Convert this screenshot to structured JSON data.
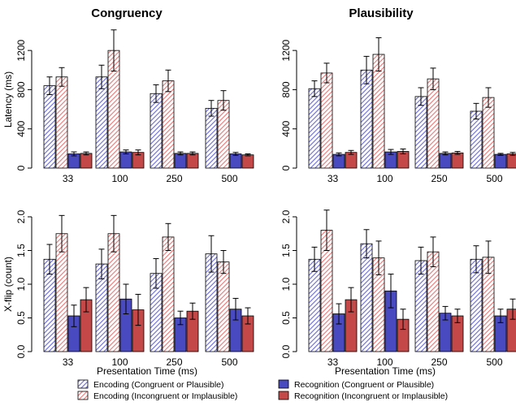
{
  "colors": {
    "encoding_congruent": "#6b6bd6",
    "encoding_incongruent": "#e87878",
    "recognition_congruent": "#4a4ac0",
    "recognition_incongruent": "#c44848",
    "axis": "#000000"
  },
  "legend": [
    {
      "label": "Encoding (Congruent or Plausible)",
      "style": "hatch",
      "color": "#6b6bd6"
    },
    {
      "label": "Encoding (Incongruent or Implausible)",
      "style": "hatch",
      "color": "#e87878"
    },
    {
      "label": "Recognition (Congruent or Plausible)",
      "style": "solid",
      "color": "#4a4ac0"
    },
    {
      "label": "Recognition (Incongruent or Implausible)",
      "style": "solid",
      "color": "#c44848"
    }
  ],
  "chart_data": [
    {
      "type": "bar",
      "title": "Congruency",
      "xlabel": "",
      "ylabel": "Latency (ms)",
      "categories": [
        "33",
        "100",
        "250",
        "500"
      ],
      "ylim": [
        0,
        1400
      ],
      "yticks": [
        0,
        400,
        800,
        1200
      ],
      "series": [
        {
          "values": [
            840,
            930,
            760,
            610
          ],
          "errors": [
            90,
            120,
            90,
            80
          ]
        },
        {
          "values": [
            930,
            1200,
            890,
            690
          ],
          "errors": [
            95,
            210,
            110,
            100
          ]
        },
        {
          "values": [
            145,
            165,
            150,
            145
          ],
          "errors": [
            20,
            20,
            15,
            15
          ]
        },
        {
          "values": [
            150,
            160,
            150,
            135
          ],
          "errors": [
            15,
            25,
            15,
            10
          ]
        }
      ]
    },
    {
      "type": "bar",
      "title": "Plausibility",
      "xlabel": "",
      "ylabel": "",
      "categories": [
        "33",
        "100",
        "250",
        "500"
      ],
      "ylim": [
        0,
        1400
      ],
      "yticks": [
        0,
        400,
        800,
        1200
      ],
      "series": [
        {
          "values": [
            810,
            1000,
            730,
            580
          ],
          "errors": [
            80,
            140,
            90,
            80
          ]
        },
        {
          "values": [
            970,
            1160,
            910,
            720
          ],
          "errors": [
            100,
            170,
            110,
            100
          ]
        },
        {
          "values": [
            140,
            165,
            150,
            140
          ],
          "errors": [
            15,
            25,
            15,
            10
          ]
        },
        {
          "values": [
            160,
            170,
            155,
            145
          ],
          "errors": [
            20,
            25,
            15,
            15
          ]
        }
      ]
    },
    {
      "type": "bar",
      "title": "",
      "xlabel": "Presentation Time (ms)",
      "ylabel": "X-flip (count)",
      "categories": [
        "33",
        "100",
        "250",
        "500"
      ],
      "ylim": [
        0,
        2.0
      ],
      "yticks": [
        0.0,
        0.5,
        1.0,
        1.5,
        2.0
      ],
      "series": [
        {
          "values": [
            1.37,
            1.3,
            1.16,
            1.45
          ],
          "errors": [
            0.22,
            0.22,
            0.22,
            0.27
          ]
        },
        {
          "values": [
            1.75,
            1.75,
            1.7,
            1.33
          ],
          "errors": [
            0.27,
            0.27,
            0.2,
            0.17
          ]
        },
        {
          "values": [
            0.53,
            0.78,
            0.5,
            0.63
          ],
          "errors": [
            0.16,
            0.22,
            0.1,
            0.16
          ]
        },
        {
          "values": [
            0.77,
            0.62,
            0.6,
            0.53
          ],
          "errors": [
            0.18,
            0.23,
            0.12,
            0.12
          ]
        }
      ]
    },
    {
      "type": "bar",
      "title": "",
      "xlabel": "Presentation Time (ms)",
      "ylabel": "",
      "categories": [
        "33",
        "100",
        "250",
        "500"
      ],
      "ylim": [
        0,
        2.0
      ],
      "yticks": [
        0.0,
        0.5,
        1.0,
        1.5,
        2.0
      ],
      "series": [
        {
          "values": [
            1.37,
            1.6,
            1.35,
            1.37
          ],
          "errors": [
            0.18,
            0.21,
            0.2,
            0.2
          ]
        },
        {
          "values": [
            1.8,
            1.39,
            1.48,
            1.4
          ],
          "errors": [
            0.3,
            0.25,
            0.22,
            0.24
          ]
        },
        {
          "values": [
            0.56,
            0.9,
            0.57,
            0.53
          ],
          "errors": [
            0.15,
            0.25,
            0.1,
            0.1
          ]
        },
        {
          "values": [
            0.77,
            0.48,
            0.53,
            0.63
          ],
          "errors": [
            0.18,
            0.15,
            0.1,
            0.15
          ]
        }
      ]
    }
  ]
}
